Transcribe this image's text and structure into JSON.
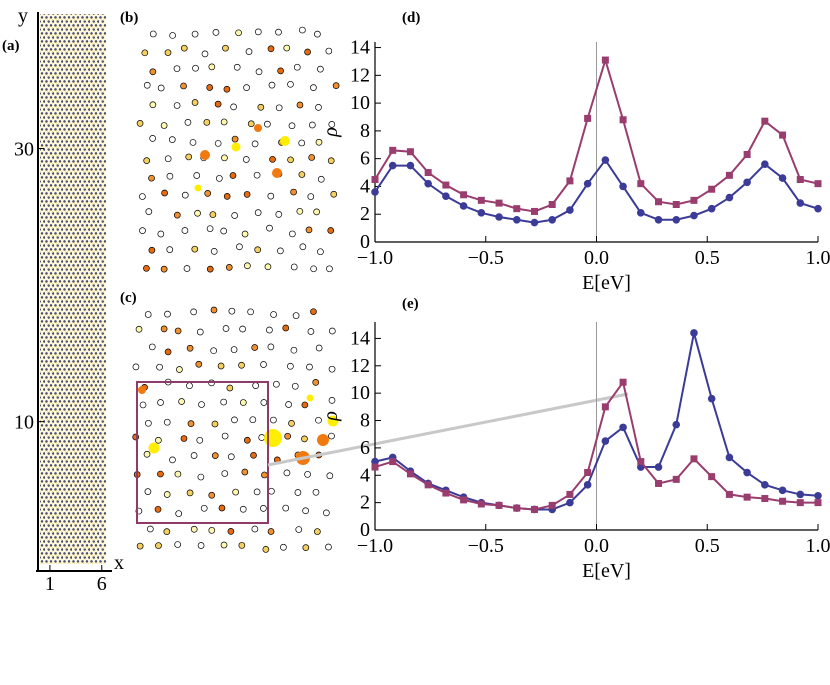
{
  "chart_data": [
    {
      "type": "lattice",
      "panel_label": "(a)",
      "xlabel": "x",
      "ylabel": "y",
      "xlim": [
        -0.15,
        6.6
      ],
      "ylim": [
        -0.5,
        40
      ],
      "xticks": [
        1,
        6
      ],
      "yticks": [
        10,
        30
      ]
    },
    {
      "type": "site-map",
      "panel_label": "(b)"
    },
    {
      "type": "site-map",
      "panel_label": "(c)"
    },
    {
      "type": "line",
      "panel_label": "(d)",
      "xlabel": "E[eV]",
      "ylabel": "ρ",
      "x": [
        -1,
        -0.92,
        -0.84,
        -0.76,
        -0.68,
        -0.6,
        -0.52,
        -0.44,
        -0.36,
        -0.28,
        -0.2,
        -0.12,
        -0.04,
        0.04,
        0.12,
        0.2,
        0.28,
        0.36,
        0.44,
        0.52,
        0.6,
        0.68,
        0.76,
        0.84,
        0.92,
        1.0
      ],
      "series": [
        {
          "color": "#3b3b98",
          "marker": "circle",
          "values": [
            3.6,
            5.5,
            5.5,
            4.2,
            3.3,
            2.6,
            2.1,
            1.8,
            1.6,
            1.4,
            1.6,
            2.3,
            4.2,
            5.9,
            4.0,
            2.1,
            1.6,
            1.6,
            1.9,
            2.4,
            3.2,
            4.3,
            5.6,
            4.6,
            2.8,
            2.4
          ]
        },
        {
          "color": "#993d6e",
          "marker": "square",
          "values": [
            4.5,
            6.6,
            6.5,
            5.0,
            4.1,
            3.4,
            3.0,
            2.8,
            2.4,
            2.2,
            2.7,
            4.4,
            8.9,
            13.1,
            8.8,
            4.2,
            2.9,
            2.7,
            3.0,
            3.8,
            4.8,
            6.3,
            8.7,
            7.7,
            4.5,
            4.2
          ]
        }
      ],
      "xlim": [
        -1,
        1
      ],
      "ylim": [
        0,
        14.4
      ],
      "xticks": [
        {
          "value": -1,
          "label": "−1.0"
        },
        {
          "value": -0.5,
          "label": "−0.5"
        },
        {
          "value": 0,
          "label": "0.0"
        },
        {
          "value": 0.5,
          "label": "0.5"
        },
        {
          "value": 1,
          "label": "1.0"
        }
      ],
      "yticks": [
        0,
        2,
        4,
        6,
        8,
        10,
        12,
        14
      ]
    },
    {
      "type": "line",
      "panel_label": "(e)",
      "xlabel": "E[eV]",
      "ylabel": "ρ",
      "x": [
        -1,
        -0.92,
        -0.84,
        -0.76,
        -0.68,
        -0.6,
        -0.52,
        -0.44,
        -0.36,
        -0.28,
        -0.2,
        -0.12,
        -0.04,
        0.04,
        0.12,
        0.2,
        0.28,
        0.36,
        0.44,
        0.52,
        0.6,
        0.68,
        0.76,
        0.84,
        0.92,
        1.0
      ],
      "series": [
        {
          "color": "#3b3b98",
          "marker": "circle",
          "values": [
            5.0,
            5.3,
            4.3,
            3.4,
            2.9,
            2.4,
            2.0,
            1.8,
            1.6,
            1.5,
            1.5,
            2.0,
            3.3,
            6.5,
            7.5,
            4.6,
            4.6,
            7.7,
            14.4,
            9.6,
            5.3,
            4.2,
            3.3,
            2.9,
            2.6,
            2.5
          ]
        },
        {
          "color": "#993d6e",
          "marker": "square",
          "values": [
            4.6,
            5.0,
            4.1,
            3.3,
            2.7,
            2.2,
            1.9,
            1.8,
            1.6,
            1.5,
            1.8,
            2.6,
            4.2,
            9.0,
            10.8,
            5.0,
            3.4,
            3.7,
            5.2,
            3.9,
            2.6,
            2.4,
            2.3,
            2.1,
            2.0,
            2.0
          ]
        }
      ],
      "xlim": [
        -1,
        1
      ],
      "ylim": [
        0,
        15.2
      ],
      "xticks": [
        {
          "value": -1,
          "label": "−1.0"
        },
        {
          "value": -0.5,
          "label": "−0.5"
        },
        {
          "value": 0,
          "label": "0.0"
        },
        {
          "value": 0.5,
          "label": "0.5"
        },
        {
          "value": 1,
          "label": "1.0"
        }
      ],
      "yticks": [
        0,
        2,
        4,
        6,
        8,
        10,
        12,
        14
      ]
    }
  ]
}
